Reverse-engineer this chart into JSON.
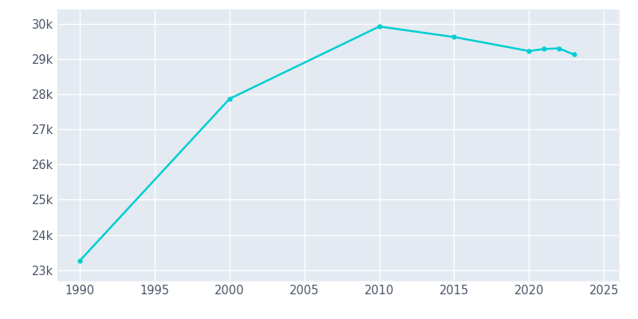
{
  "years": [
    1990,
    2000,
    2010,
    2015,
    2020,
    2021,
    2022,
    2023
  ],
  "population": [
    23270,
    27867,
    29919,
    29620,
    29223,
    29280,
    29300,
    29122
  ],
  "line_color": "#00CED1",
  "marker": "o",
  "marker_size": 3.5,
  "linewidth": 1.8,
  "background_color": "#E3EAF2",
  "fig_background": "#ffffff",
  "grid_color": "#ffffff",
  "ylim": [
    22700,
    30400
  ],
  "xlim": [
    1988.5,
    2026
  ],
  "ytick_labels": [
    "23k",
    "24k",
    "25k",
    "26k",
    "27k",
    "28k",
    "29k",
    "30k"
  ],
  "ytick_values": [
    23000,
    24000,
    25000,
    26000,
    27000,
    28000,
    29000,
    30000
  ],
  "xtick_values": [
    1990,
    1995,
    2000,
    2005,
    2010,
    2015,
    2020,
    2025
  ],
  "spine_color": "#E3EAF2",
  "tick_color": "#4a5568",
  "tick_fontsize": 10.5
}
